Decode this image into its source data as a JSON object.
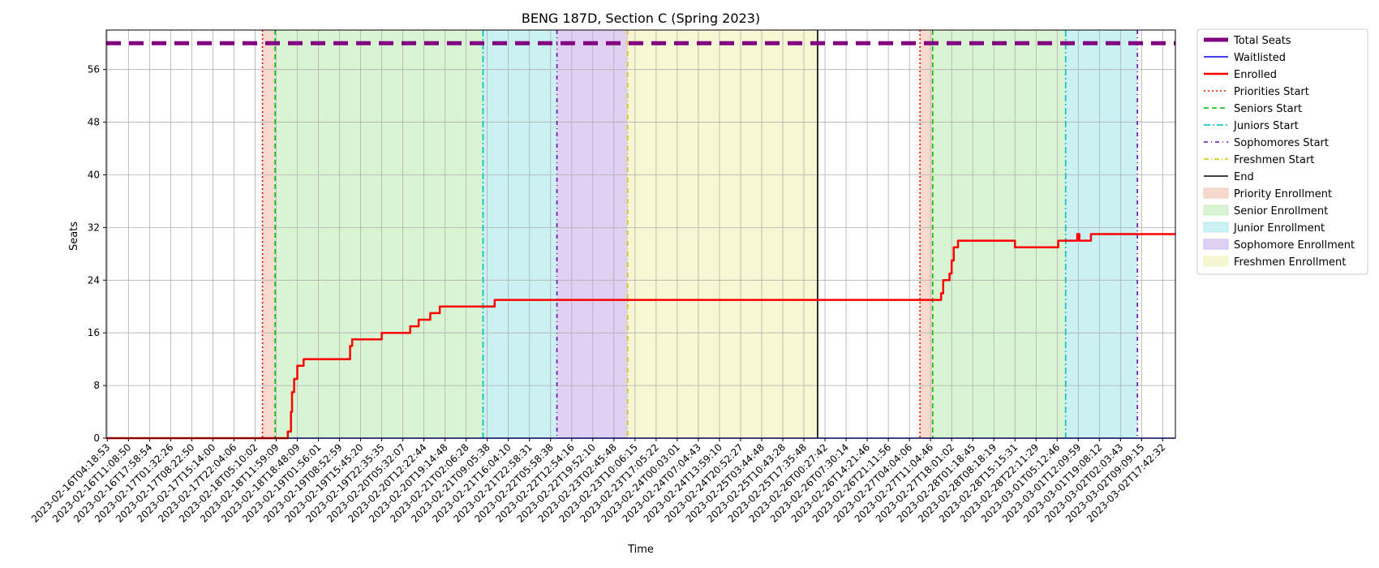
{
  "colors": {
    "total": "#800080",
    "waitlisted": "#0000ff",
    "enrolled": "#ff0000",
    "priorities_line": "#ff0000",
    "seniors_line": "#00bb00",
    "juniors_line": "#00bfbf",
    "sophomores_line": "#6a0dad",
    "freshmen_line": "#d4c200",
    "end_line": "#000000",
    "priority_fill": "#f4cbb9",
    "senior_fill": "#c8f0c0",
    "junior_fill": "#b5ebee",
    "sophomore_fill": "#d2bcef",
    "freshmen_fill": "#f4f4c0",
    "grid": "#b0b0b0"
  },
  "chart_data": {
    "type": "line",
    "title": "BENG 187D, Section C (Spring 2023)",
    "xlabel": "Time",
    "ylabel": "Seats",
    "ylim": [
      0,
      62
    ],
    "yticks": [
      0,
      8,
      16,
      24,
      32,
      40,
      48,
      56
    ],
    "grid": true,
    "legend_position": "outside-right",
    "xticks": [
      "2023-02-16T04:18:53",
      "2023-02-16T11:08:50",
      "2023-02-16T17:58:54",
      "2023-02-17T01:32:26",
      "2023-02-17T08:22:50",
      "2023-02-17T15:14:00",
      "2023-02-17T22:04:06",
      "2023-02-18T05:10:02",
      "2023-02-18T11:59:09",
      "2023-02-18T18:48:09",
      "2023-02-19T01:56:01",
      "2023-02-19T08:52:59",
      "2023-02-19T15:45:20",
      "2023-02-19T22:35:35",
      "2023-02-20T05:32:07",
      "2023-02-20T12:22:44",
      "2023-02-20T19:14:48",
      "2023-02-21T02:06:28",
      "2023-02-21T09:05:38",
      "2023-02-21T16:04:10",
      "2023-02-21T22:58:31",
      "2023-02-22T05:58:38",
      "2023-02-22T12:54:16",
      "2023-02-22T19:52:10",
      "2023-02-23T02:45:48",
      "2023-02-23T10:06:15",
      "2023-02-23T17:05:22",
      "2023-02-24T00:03:01",
      "2023-02-24T07:04:43",
      "2023-02-24T13:59:10",
      "2023-02-24T20:52:27",
      "2023-02-25T03:44:48",
      "2023-02-25T10:43:28",
      "2023-02-25T17:35:48",
      "2023-02-26T00:27:42",
      "2023-02-26T07:30:14",
      "2023-02-26T14:21:46",
      "2023-02-26T21:11:56",
      "2023-02-27T04:04:06",
      "2023-02-27T11:04:46",
      "2023-02-27T18:01:02",
      "2023-02-28T01:18:45",
      "2023-02-28T08:18:19",
      "2023-02-28T15:15:31",
      "2023-02-28T22:11:29",
      "2023-03-01T05:12:46",
      "2023-03-01T12:09:59",
      "2023-03-01T19:08:12",
      "2023-03-02T02:03:43",
      "2023-03-02T09:09:15",
      "2023-03-02T17:42:32"
    ],
    "x_range": [
      -0.05,
      50.6
    ],
    "bands": [
      {
        "label": "Priority Enrollment",
        "start": 7.35,
        "end": 7.95,
        "color_key": "priority_fill"
      },
      {
        "label": "Senior Enrollment",
        "start": 7.95,
        "end": 17.8,
        "color_key": "senior_fill"
      },
      {
        "label": "Junior Enrollment",
        "start": 17.8,
        "end": 21.3,
        "color_key": "junior_fill"
      },
      {
        "label": "Sophomore Enrollment",
        "start": 21.3,
        "end": 24.65,
        "color_key": "sophomore_fill"
      },
      {
        "label": "Freshmen Enrollment",
        "start": 24.65,
        "end": 33.65,
        "color_key": "freshmen_fill"
      },
      {
        "label": "Priority Enrollment",
        "start": 38.5,
        "end": 39.1,
        "color_key": "priority_fill"
      },
      {
        "label": "Senior Enrollment",
        "start": 39.1,
        "end": 45.4,
        "color_key": "senior_fill"
      },
      {
        "label": "Junior Enrollment",
        "start": 45.4,
        "end": 48.8,
        "color_key": "junior_fill"
      }
    ],
    "vlines": [
      {
        "label": "Priorities Start",
        "x": 7.35,
        "color_key": "priorities_line",
        "dash": "2,3"
      },
      {
        "label": "Seniors Start",
        "x": 7.95,
        "color_key": "seniors_line",
        "dash": "6,4"
      },
      {
        "label": "Juniors Start",
        "x": 17.8,
        "color_key": "juniors_line",
        "dash": "8,3,2,3"
      },
      {
        "label": "Sophomores Start",
        "x": 21.3,
        "color_key": "sophomores_line",
        "dash": "5,4,1,4"
      },
      {
        "label": "Freshmen Start",
        "x": 24.65,
        "color_key": "freshmen_line",
        "dash": "6,3,1,3"
      },
      {
        "label": "End",
        "x": 33.65,
        "color_key": "end_line",
        "dash": ""
      },
      {
        "label": "Priorities Start",
        "x": 38.5,
        "color_key": "priorities_line",
        "dash": "2,3"
      },
      {
        "label": "Seniors Start",
        "x": 39.1,
        "color_key": "seniors_line",
        "dash": "6,4"
      },
      {
        "label": "Juniors Start",
        "x": 45.4,
        "color_key": "juniors_line",
        "dash": "8,3,2,3"
      },
      {
        "label": "Sophomores Start",
        "x": 48.8,
        "color_key": "sophomores_line",
        "dash": "5,4,1,4"
      }
    ],
    "series": [
      {
        "name": "Total Seats",
        "color_key": "total",
        "constant": 60
      },
      {
        "name": "Waitlisted",
        "color_key": "waitlisted",
        "constant": 0
      },
      {
        "name": "Enrolled",
        "color_key": "enrolled",
        "steps": [
          [
            -0.05,
            0
          ],
          [
            8.55,
            0
          ],
          [
            8.55,
            1
          ],
          [
            8.7,
            1
          ],
          [
            8.7,
            4
          ],
          [
            8.75,
            4
          ],
          [
            8.75,
            7
          ],
          [
            8.85,
            7
          ],
          [
            8.85,
            9
          ],
          [
            9.0,
            9
          ],
          [
            9.0,
            11
          ],
          [
            9.3,
            11
          ],
          [
            9.3,
            12
          ],
          [
            11.5,
            12
          ],
          [
            11.5,
            14
          ],
          [
            11.6,
            14
          ],
          [
            11.6,
            15
          ],
          [
            13.0,
            15
          ],
          [
            13.0,
            16
          ],
          [
            14.35,
            16
          ],
          [
            14.35,
            17
          ],
          [
            14.75,
            17
          ],
          [
            14.75,
            18
          ],
          [
            15.3,
            18
          ],
          [
            15.3,
            19
          ],
          [
            15.75,
            19
          ],
          [
            15.75,
            20
          ],
          [
            18.35,
            20
          ],
          [
            18.35,
            21
          ],
          [
            39.5,
            21
          ],
          [
            39.5,
            22
          ],
          [
            39.6,
            22
          ],
          [
            39.6,
            24
          ],
          [
            39.9,
            24
          ],
          [
            39.9,
            25
          ],
          [
            40.0,
            25
          ],
          [
            40.0,
            27
          ],
          [
            40.1,
            27
          ],
          [
            40.1,
            29
          ],
          [
            40.3,
            29
          ],
          [
            40.3,
            30
          ],
          [
            43.0,
            30
          ],
          [
            43.0,
            29
          ],
          [
            45.05,
            29
          ],
          [
            45.05,
            30
          ],
          [
            45.95,
            30
          ],
          [
            45.95,
            31
          ],
          [
            46.05,
            31
          ],
          [
            46.05,
            30
          ],
          [
            46.6,
            30
          ],
          [
            46.6,
            31
          ],
          [
            50.6,
            31
          ]
        ]
      }
    ],
    "legend": [
      {
        "label": "Total Seats",
        "kind": "line",
        "color_key": "total",
        "width": 5,
        "dash": ""
      },
      {
        "label": "Waitlisted",
        "kind": "line",
        "color_key": "waitlisted",
        "width": 1.5,
        "dash": ""
      },
      {
        "label": "Enrolled",
        "kind": "line",
        "color_key": "enrolled",
        "width": 2.5,
        "dash": ""
      },
      {
        "label": "Priorities Start",
        "kind": "line",
        "color_key": "priorities_line",
        "width": 1.5,
        "dash": "2,3"
      },
      {
        "label": "Seniors Start",
        "kind": "line",
        "color_key": "seniors_line",
        "width": 1.5,
        "dash": "6,4"
      },
      {
        "label": "Juniors Start",
        "kind": "line",
        "color_key": "juniors_line",
        "width": 1.5,
        "dash": "8,3,2,3"
      },
      {
        "label": "Sophomores Start",
        "kind": "line",
        "color_key": "sophomores_line",
        "width": 1.5,
        "dash": "5,4,1,4"
      },
      {
        "label": "Freshmen Start",
        "kind": "line",
        "color_key": "freshmen_line",
        "width": 1.5,
        "dash": "6,3,1,3"
      },
      {
        "label": "End",
        "kind": "line",
        "color_key": "end_line",
        "width": 1.5,
        "dash": ""
      },
      {
        "label": "Priority Enrollment",
        "kind": "patch",
        "color_key": "priority_fill"
      },
      {
        "label": "Senior Enrollment",
        "kind": "patch",
        "color_key": "senior_fill"
      },
      {
        "label": "Junior Enrollment",
        "kind": "patch",
        "color_key": "junior_fill"
      },
      {
        "label": "Sophomore Enrollment",
        "kind": "patch",
        "color_key": "sophomore_fill"
      },
      {
        "label": "Freshmen Enrollment",
        "kind": "patch",
        "color_key": "freshmen_fill"
      }
    ]
  }
}
